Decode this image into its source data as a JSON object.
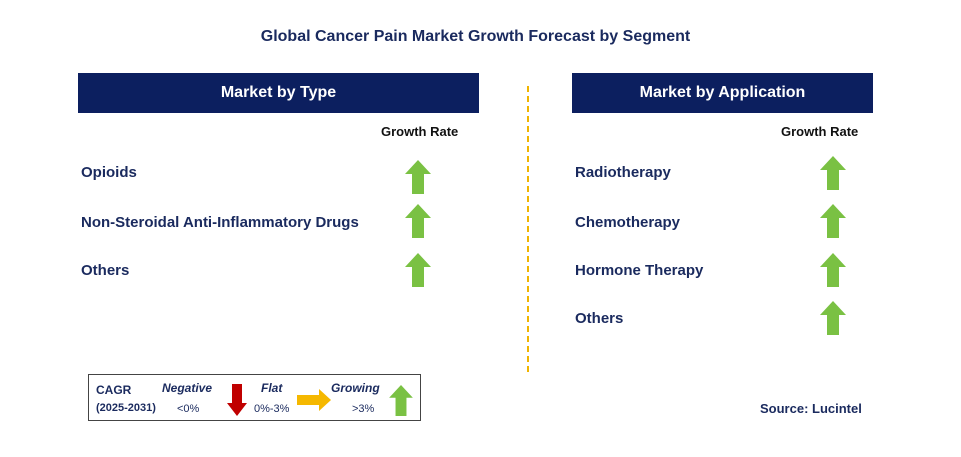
{
  "title": "Global Cancer Pain Market Growth Forecast by Segment",
  "left_panel": {
    "header": "Market by Type",
    "growth_rate_label": "Growth Rate",
    "rows": [
      {
        "label": "Opioids",
        "trend": "growing"
      },
      {
        "label": "Non-Steroidal Anti-Inflammatory Drugs",
        "trend": "growing"
      },
      {
        "label": "Others",
        "trend": "growing"
      }
    ]
  },
  "right_panel": {
    "header": "Market by Application",
    "growth_rate_label": "Growth Rate",
    "rows": [
      {
        "label": "Radiotherapy",
        "trend": "growing"
      },
      {
        "label": "Chemotherapy",
        "trend": "growing"
      },
      {
        "label": "Hormone Therapy",
        "trend": "growing"
      },
      {
        "label": "Others",
        "trend": "growing"
      }
    ]
  },
  "legend": {
    "cagr_label": "CAGR",
    "period": "(2025-2031)",
    "negative_label": "Negative",
    "negative_range": "<0%",
    "flat_label": "Flat",
    "flat_range": "0%-3%",
    "growing_label": "Growing",
    "growing_range": ">3%"
  },
  "source": "Source: Lucintel",
  "colors": {
    "header_bg": "#0c1f5f",
    "text_navy": "#1a2a5e",
    "arrow_green": "#7ac143",
    "arrow_red": "#c00000",
    "arrow_yellow": "#f5b800",
    "divider": "#f0b400"
  },
  "icons": {
    "growing": "green-up-arrow-icon",
    "negative": "red-down-arrow-icon",
    "flat": "yellow-right-arrow-icon"
  }
}
